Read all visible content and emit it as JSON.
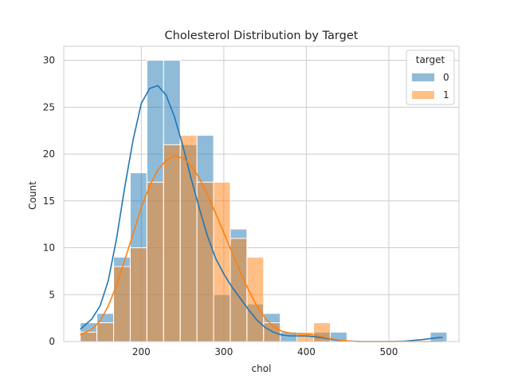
{
  "chart_data": {
    "type": "histogram",
    "title": "Cholesterol Distribution by Target",
    "xlabel": "chol",
    "ylabel": "Count",
    "xlim": [
      106,
      585
    ],
    "ylim": [
      0,
      31.5
    ],
    "xticks": [
      200,
      300,
      400,
      500
    ],
    "yticks": [
      0,
      5,
      10,
      15,
      20,
      25,
      30
    ],
    "grid": true,
    "legend": {
      "title": "target",
      "placement": "top-right"
    },
    "bin_edges": [
      126,
      146.2,
      166.4,
      186.6,
      206.8,
      227,
      247.2,
      267.4,
      287.6,
      307.8,
      328,
      348.2,
      368.4,
      388.6,
      408.8,
      429,
      449.2,
      469.4,
      489.6,
      509.8,
      530,
      550.2,
      570.4
    ],
    "series": [
      {
        "name": "0",
        "color": "#1f77b4",
        "counts": [
          2,
          3,
          9,
          18,
          30,
          30,
          21,
          22,
          5,
          12,
          4,
          3,
          1,
          0,
          1,
          1,
          0,
          0,
          0,
          0,
          0,
          1
        ],
        "kde": [
          [
            126,
            1.3
          ],
          [
            140,
            2.4
          ],
          [
            150,
            3.8
          ],
          [
            160,
            6.5
          ],
          [
            170,
            11.0
          ],
          [
            180,
            16.5
          ],
          [
            190,
            21.5
          ],
          [
            200,
            25.4
          ],
          [
            210,
            27.0
          ],
          [
            220,
            27.3
          ],
          [
            230,
            26.3
          ],
          [
            240,
            24.0
          ],
          [
            250,
            21.0
          ],
          [
            260,
            17.5
          ],
          [
            270,
            14.3
          ],
          [
            280,
            11.3
          ],
          [
            290,
            8.9
          ],
          [
            300,
            7.2
          ],
          [
            310,
            5.8
          ],
          [
            320,
            4.6
          ],
          [
            330,
            3.4
          ],
          [
            340,
            2.3
          ],
          [
            350,
            1.5
          ],
          [
            360,
            1.0
          ],
          [
            370,
            0.7
          ],
          [
            380,
            0.6
          ],
          [
            390,
            0.6
          ],
          [
            400,
            0.6
          ],
          [
            410,
            0.5
          ],
          [
            420,
            0.4
          ],
          [
            430,
            0.25
          ],
          [
            440,
            0.1
          ],
          [
            450,
            0.05
          ],
          [
            470,
            0.0
          ],
          [
            500,
            0.0
          ],
          [
            520,
            0.05
          ],
          [
            540,
            0.2
          ],
          [
            553,
            0.35
          ],
          [
            565,
            0.45
          ]
        ]
      },
      {
        "name": "1",
        "color": "#ff7f0e",
        "counts": [
          1,
          2,
          8,
          10,
          17,
          21,
          22,
          17,
          17,
          11,
          9,
          2,
          0,
          1,
          2,
          0,
          0,
          0,
          0,
          0,
          0,
          0
        ],
        "kde": [
          [
            126,
            0.7
          ],
          [
            140,
            1.3
          ],
          [
            150,
            2.2
          ],
          [
            160,
            3.8
          ],
          [
            170,
            6.0
          ],
          [
            180,
            8.7
          ],
          [
            190,
            11.5
          ],
          [
            200,
            14.3
          ],
          [
            210,
            16.6
          ],
          [
            220,
            18.3
          ],
          [
            230,
            19.3
          ],
          [
            240,
            19.8
          ],
          [
            250,
            19.6
          ],
          [
            260,
            18.8
          ],
          [
            270,
            17.5
          ],
          [
            280,
            15.7
          ],
          [
            290,
            13.7
          ],
          [
            300,
            11.6
          ],
          [
            310,
            9.5
          ],
          [
            320,
            7.4
          ],
          [
            330,
            5.5
          ],
          [
            340,
            3.8
          ],
          [
            350,
            2.5
          ],
          [
            360,
            1.6
          ],
          [
            370,
            1.1
          ],
          [
            380,
            0.9
          ],
          [
            390,
            0.8
          ],
          [
            400,
            0.8
          ],
          [
            410,
            0.7
          ],
          [
            420,
            0.5
          ],
          [
            430,
            0.3
          ],
          [
            440,
            0.15
          ],
          [
            460,
            0.0
          ],
          [
            565,
            0.0
          ]
        ]
      }
    ]
  }
}
